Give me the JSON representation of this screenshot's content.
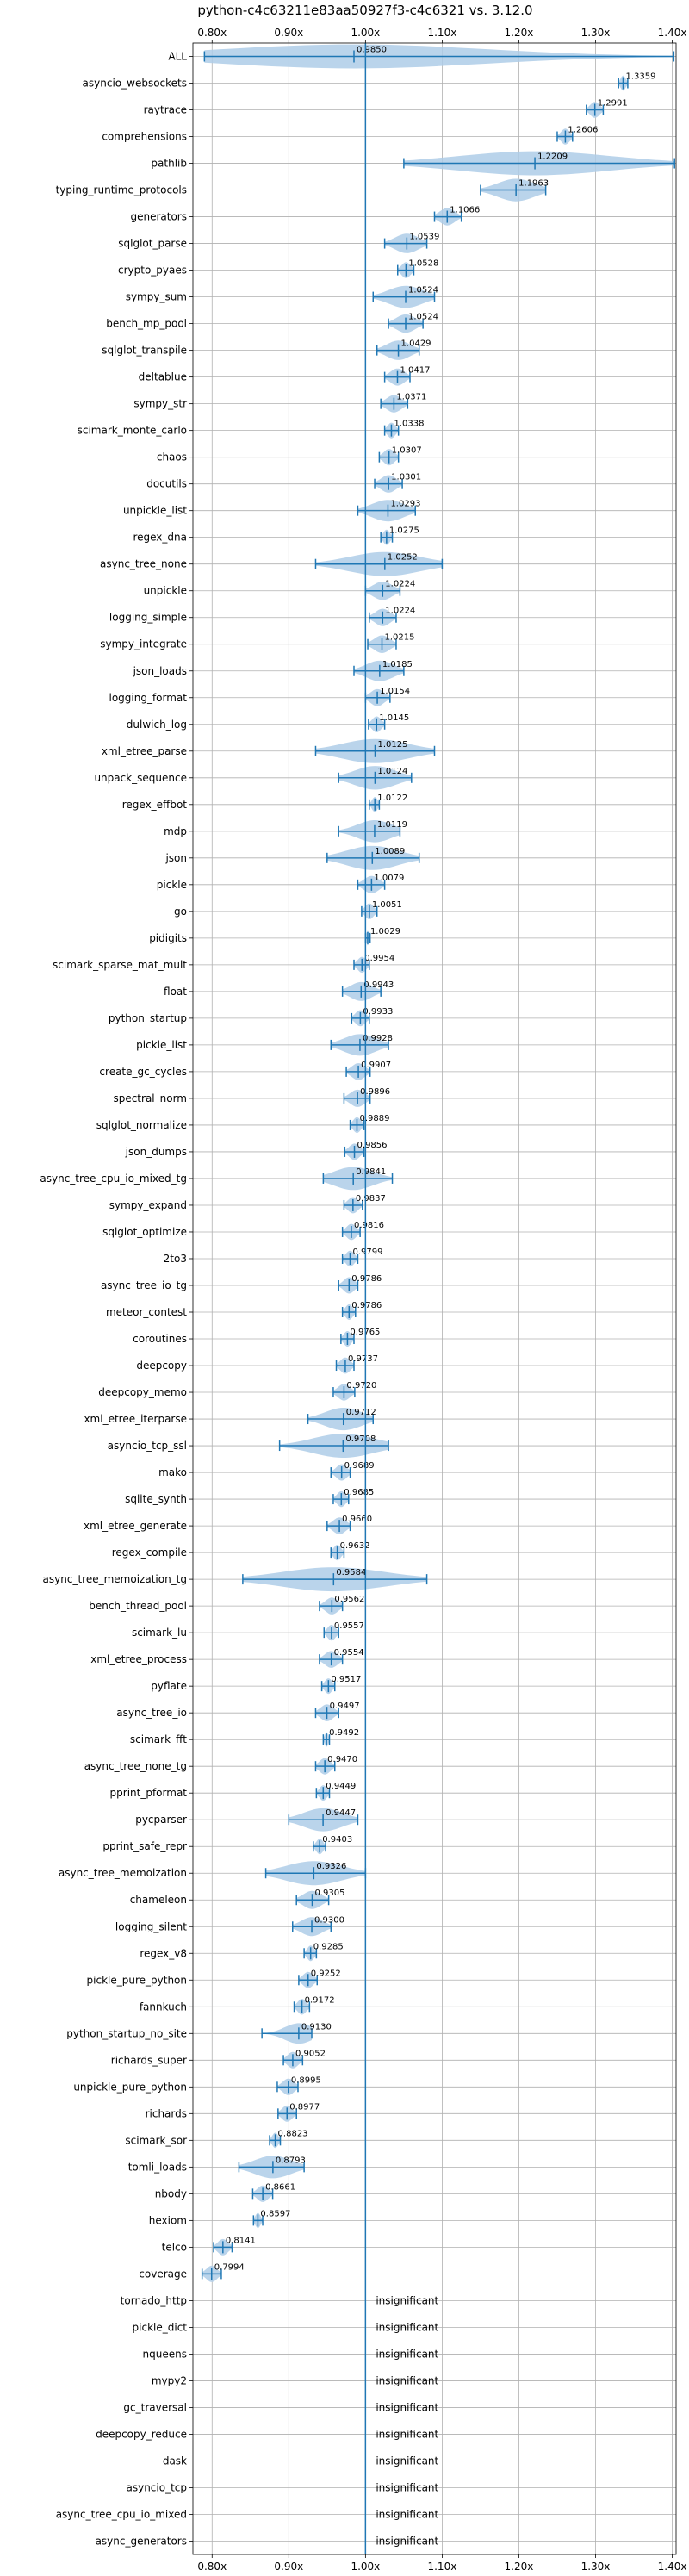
{
  "chart_data": {
    "type": "violin",
    "title": "python-c4c63211e83aa50927f3-c4c6321 vs. 3.12.0",
    "xlim": [
      0.775,
      1.405
    ],
    "xticks": [
      0.8,
      0.9,
      1.0,
      1.1,
      1.2,
      1.3,
      1.4
    ],
    "xtick_labels": [
      "0.80x",
      "0.90x",
      "1.00x",
      "1.10x",
      "1.20x",
      "1.30x",
      "1.40x"
    ],
    "reference_line": 1.0,
    "grid": true,
    "insignificant_label": "insignificant",
    "benchmarks": [
      {
        "name": "ALL",
        "value": 0.985,
        "label": "0.9850",
        "lo": 0.79,
        "hi": 1.402
      },
      {
        "name": "asyncio_websockets",
        "value": 1.3359,
        "label": "1.3359",
        "lo": 1.33,
        "hi": 1.342
      },
      {
        "name": "raytrace",
        "value": 1.2991,
        "label": "1.2991",
        "lo": 1.288,
        "hi": 1.31
      },
      {
        "name": "comprehensions",
        "value": 1.2606,
        "label": "1.2606",
        "lo": 1.25,
        "hi": 1.27
      },
      {
        "name": "pathlib",
        "value": 1.2209,
        "label": "1.2209",
        "lo": 1.05,
        "hi": 1.403
      },
      {
        "name": "typing_runtime_protocols",
        "value": 1.1963,
        "label": "1.1963",
        "lo": 1.15,
        "hi": 1.235
      },
      {
        "name": "generators",
        "value": 1.1066,
        "label": "1.1066",
        "lo": 1.09,
        "hi": 1.125
      },
      {
        "name": "sqlglot_parse",
        "value": 1.0539,
        "label": "1.0539",
        "lo": 1.025,
        "hi": 1.08
      },
      {
        "name": "crypto_pyaes",
        "value": 1.0528,
        "label": "1.0528",
        "lo": 1.042,
        "hi": 1.063
      },
      {
        "name": "sympy_sum",
        "value": 1.0524,
        "label": "1.0524",
        "lo": 1.01,
        "hi": 1.09
      },
      {
        "name": "bench_mp_pool",
        "value": 1.0524,
        "label": "1.0524",
        "lo": 1.03,
        "hi": 1.075
      },
      {
        "name": "sqlglot_transpile",
        "value": 1.0429,
        "label": "1.0429",
        "lo": 1.015,
        "hi": 1.07
      },
      {
        "name": "deltablue",
        "value": 1.0417,
        "label": "1.0417",
        "lo": 1.025,
        "hi": 1.058
      },
      {
        "name": "sympy_str",
        "value": 1.0371,
        "label": "1.0371",
        "lo": 1.02,
        "hi": 1.055
      },
      {
        "name": "scimark_monte_carlo",
        "value": 1.0338,
        "label": "1.0338",
        "lo": 1.025,
        "hi": 1.043
      },
      {
        "name": "chaos",
        "value": 1.0307,
        "label": "1.0307",
        "lo": 1.018,
        "hi": 1.043
      },
      {
        "name": "docutils",
        "value": 1.0301,
        "label": "1.0301",
        "lo": 1.012,
        "hi": 1.048
      },
      {
        "name": "unpickle_list",
        "value": 1.0293,
        "label": "1.0293",
        "lo": 0.99,
        "hi": 1.065
      },
      {
        "name": "regex_dna",
        "value": 1.0275,
        "label": "1.0275",
        "lo": 1.02,
        "hi": 1.035
      },
      {
        "name": "async_tree_none",
        "value": 1.0252,
        "label": "1.0252",
        "lo": 0.935,
        "hi": 1.1
      },
      {
        "name": "unpickle",
        "value": 1.0224,
        "label": "1.0224",
        "lo": 1.0,
        "hi": 1.045
      },
      {
        "name": "logging_simple",
        "value": 1.0224,
        "label": "1.0224",
        "lo": 1.005,
        "hi": 1.04
      },
      {
        "name": "sympy_integrate",
        "value": 1.0215,
        "label": "1.0215",
        "lo": 1.003,
        "hi": 1.04
      },
      {
        "name": "json_loads",
        "value": 1.0185,
        "label": "1.0185",
        "lo": 0.985,
        "hi": 1.05
      },
      {
        "name": "logging_format",
        "value": 1.0154,
        "label": "1.0154",
        "lo": 1.0,
        "hi": 1.032
      },
      {
        "name": "dulwich_log",
        "value": 1.0145,
        "label": "1.0145",
        "lo": 1.004,
        "hi": 1.025
      },
      {
        "name": "xml_etree_parse",
        "value": 1.0125,
        "label": "1.0125",
        "lo": 0.935,
        "hi": 1.09
      },
      {
        "name": "unpack_sequence",
        "value": 1.0124,
        "label": "1.0124",
        "lo": 0.965,
        "hi": 1.06
      },
      {
        "name": "regex_effbot",
        "value": 1.0122,
        "label": "1.0122",
        "lo": 1.005,
        "hi": 1.018
      },
      {
        "name": "mdp",
        "value": 1.0119,
        "label": "1.0119",
        "lo": 0.965,
        "hi": 1.045
      },
      {
        "name": "json",
        "value": 1.0089,
        "label": "1.0089",
        "lo": 0.95,
        "hi": 1.07
      },
      {
        "name": "pickle",
        "value": 1.0079,
        "label": "1.0079",
        "lo": 0.99,
        "hi": 1.025
      },
      {
        "name": "go",
        "value": 1.0051,
        "label": "1.0051",
        "lo": 0.995,
        "hi": 1.015
      },
      {
        "name": "pidigits",
        "value": 1.0029,
        "label": "1.0029",
        "lo": 1.0,
        "hi": 1.006
      },
      {
        "name": "scimark_sparse_mat_mult",
        "value": 0.9954,
        "label": "0.9954",
        "lo": 0.985,
        "hi": 1.005
      },
      {
        "name": "float",
        "value": 0.9943,
        "label": "0.9943",
        "lo": 0.97,
        "hi": 1.02
      },
      {
        "name": "python_startup",
        "value": 0.9933,
        "label": "0.9933",
        "lo": 0.982,
        "hi": 1.005
      },
      {
        "name": "pickle_list",
        "value": 0.9928,
        "label": "0.9928",
        "lo": 0.955,
        "hi": 1.03
      },
      {
        "name": "create_gc_cycles",
        "value": 0.9907,
        "label": "0.9907",
        "lo": 0.975,
        "hi": 1.006
      },
      {
        "name": "spectral_norm",
        "value": 0.9896,
        "label": "0.9896",
        "lo": 0.972,
        "hi": 1.006
      },
      {
        "name": "sqlglot_normalize",
        "value": 0.9889,
        "label": "0.9889",
        "lo": 0.98,
        "hi": 0.998
      },
      {
        "name": "json_dumps",
        "value": 0.9856,
        "label": "0.9856",
        "lo": 0.973,
        "hi": 0.998
      },
      {
        "name": "async_tree_cpu_io_mixed_tg",
        "value": 0.9841,
        "label": "0.9841",
        "lo": 0.945,
        "hi": 1.035
      },
      {
        "name": "sympy_expand",
        "value": 0.9837,
        "label": "0.9837",
        "lo": 0.972,
        "hi": 0.996
      },
      {
        "name": "sqlglot_optimize",
        "value": 0.9816,
        "label": "0.9816",
        "lo": 0.97,
        "hi": 0.993
      },
      {
        "name": "2to3",
        "value": 0.9799,
        "label": "0.9799",
        "lo": 0.97,
        "hi": 0.99
      },
      {
        "name": "async_tree_io_tg",
        "value": 0.9786,
        "label": "0.9786",
        "lo": 0.965,
        "hi": 0.99
      },
      {
        "name": "meteor_contest",
        "value": 0.9786,
        "label": "0.9786",
        "lo": 0.97,
        "hi": 0.987
      },
      {
        "name": "coroutines",
        "value": 0.9765,
        "label": "0.9765",
        "lo": 0.968,
        "hi": 0.985
      },
      {
        "name": "deepcopy",
        "value": 0.9737,
        "label": "0.9737",
        "lo": 0.962,
        "hi": 0.985
      },
      {
        "name": "deepcopy_memo",
        "value": 0.972,
        "label": "0.9720",
        "lo": 0.958,
        "hi": 0.986
      },
      {
        "name": "xml_etree_iterparse",
        "value": 0.9712,
        "label": "0.9712",
        "lo": 0.925,
        "hi": 1.01
      },
      {
        "name": "asyncio_tcp_ssl",
        "value": 0.9708,
        "label": "0.9708",
        "lo": 0.888,
        "hi": 1.03
      },
      {
        "name": "mako",
        "value": 0.9689,
        "label": "0.9689",
        "lo": 0.955,
        "hi": 0.98
      },
      {
        "name": "sqlite_synth",
        "value": 0.9685,
        "label": "0.9685",
        "lo": 0.958,
        "hi": 0.978
      },
      {
        "name": "xml_etree_generate",
        "value": 0.966,
        "label": "0.9660",
        "lo": 0.95,
        "hi": 0.98
      },
      {
        "name": "regex_compile",
        "value": 0.9632,
        "label": "0.9632",
        "lo": 0.955,
        "hi": 0.972
      },
      {
        "name": "async_tree_memoization_tg",
        "value": 0.9584,
        "label": "0.9584",
        "lo": 0.84,
        "hi": 1.08
      },
      {
        "name": "bench_thread_pool",
        "value": 0.9562,
        "label": "0.9562",
        "lo": 0.94,
        "hi": 0.97
      },
      {
        "name": "scimark_lu",
        "value": 0.9557,
        "label": "0.9557",
        "lo": 0.946,
        "hi": 0.965
      },
      {
        "name": "xml_etree_process",
        "value": 0.9554,
        "label": "0.9554",
        "lo": 0.94,
        "hi": 0.97
      },
      {
        "name": "pyflate",
        "value": 0.9517,
        "label": "0.9517",
        "lo": 0.943,
        "hi": 0.96
      },
      {
        "name": "async_tree_io",
        "value": 0.9497,
        "label": "0.9497",
        "lo": 0.935,
        "hi": 0.965
      },
      {
        "name": "scimark_fft",
        "value": 0.9492,
        "label": "0.9492",
        "lo": 0.945,
        "hi": 0.953
      },
      {
        "name": "async_tree_none_tg",
        "value": 0.947,
        "label": "0.9470",
        "lo": 0.935,
        "hi": 0.96
      },
      {
        "name": "pprint_pformat",
        "value": 0.9449,
        "label": "0.9449",
        "lo": 0.936,
        "hi": 0.953
      },
      {
        "name": "pycparser",
        "value": 0.9447,
        "label": "0.9447",
        "lo": 0.9,
        "hi": 0.99
      },
      {
        "name": "pprint_safe_repr",
        "value": 0.9403,
        "label": "0.9403",
        "lo": 0.932,
        "hi": 0.948
      },
      {
        "name": "async_tree_memoization",
        "value": 0.9326,
        "label": "0.9326",
        "lo": 0.87,
        "hi": 1.0
      },
      {
        "name": "chameleon",
        "value": 0.9305,
        "label": "0.9305",
        "lo": 0.91,
        "hi": 0.952
      },
      {
        "name": "logging_silent",
        "value": 0.93,
        "label": "0.9300",
        "lo": 0.905,
        "hi": 0.955
      },
      {
        "name": "regex_v8",
        "value": 0.9285,
        "label": "0.9285",
        "lo": 0.92,
        "hi": 0.936
      },
      {
        "name": "pickle_pure_python",
        "value": 0.9252,
        "label": "0.9252",
        "lo": 0.913,
        "hi": 0.937
      },
      {
        "name": "fannkuch",
        "value": 0.9172,
        "label": "0.9172",
        "lo": 0.907,
        "hi": 0.927
      },
      {
        "name": "python_startup_no_site",
        "value": 0.913,
        "label": "0.9130",
        "lo": 0.865,
        "hi": 0.93
      },
      {
        "name": "richards_super",
        "value": 0.9052,
        "label": "0.9052",
        "lo": 0.893,
        "hi": 0.918
      },
      {
        "name": "unpickle_pure_python",
        "value": 0.8995,
        "label": "0.8995",
        "lo": 0.885,
        "hi": 0.912
      },
      {
        "name": "richards",
        "value": 0.8977,
        "label": "0.8977",
        "lo": 0.886,
        "hi": 0.91
      },
      {
        "name": "scimark_sor",
        "value": 0.8823,
        "label": "0.8823",
        "lo": 0.875,
        "hi": 0.889
      },
      {
        "name": "tomli_loads",
        "value": 0.8793,
        "label": "0.8793",
        "lo": 0.835,
        "hi": 0.92
      },
      {
        "name": "nbody",
        "value": 0.8661,
        "label": "0.8661",
        "lo": 0.853,
        "hi": 0.879
      },
      {
        "name": "hexiom",
        "value": 0.8597,
        "label": "0.8597",
        "lo": 0.854,
        "hi": 0.866
      },
      {
        "name": "telco",
        "value": 0.8141,
        "label": "0.8141",
        "lo": 0.802,
        "hi": 0.826
      },
      {
        "name": "coverage",
        "value": 0.7994,
        "label": "0.7994",
        "lo": 0.787,
        "hi": 0.812
      },
      {
        "name": "tornado_http",
        "value": null,
        "label": ""
      },
      {
        "name": "pickle_dict",
        "value": null,
        "label": ""
      },
      {
        "name": "nqueens",
        "value": null,
        "label": ""
      },
      {
        "name": "mypy2",
        "value": null,
        "label": ""
      },
      {
        "name": "gc_traversal",
        "value": null,
        "label": ""
      },
      {
        "name": "deepcopy_reduce",
        "value": null,
        "label": ""
      },
      {
        "name": "dask",
        "value": null,
        "label": ""
      },
      {
        "name": "asyncio_tcp",
        "value": null,
        "label": ""
      },
      {
        "name": "async_tree_cpu_io_mixed",
        "value": null,
        "label": ""
      },
      {
        "name": "async_generators",
        "value": null,
        "label": ""
      }
    ]
  },
  "colors": {
    "violin_fill": "#aecde8",
    "bar": "#1f77b4",
    "grid": "#b0b0b0",
    "reference_line": "#1f77b4",
    "text": "#000000"
  }
}
